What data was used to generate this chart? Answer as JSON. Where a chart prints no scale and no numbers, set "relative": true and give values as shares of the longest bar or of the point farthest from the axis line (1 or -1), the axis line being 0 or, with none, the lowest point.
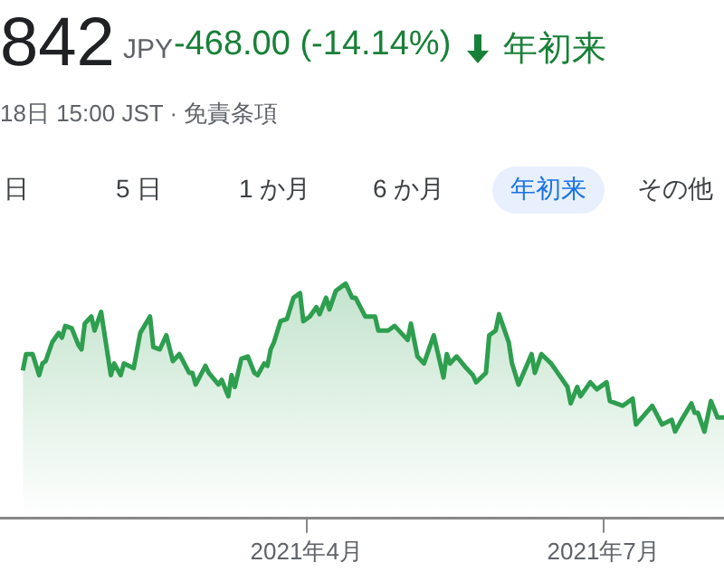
{
  "chart_data": {
    "type": "area",
    "title": "842",
    "subtitle": "18日 15:00 JST · 免責条項",
    "annotations": [
      "JPY",
      "-468.00 (-14.14%)",
      "年初来",
      "日",
      "5 日",
      "1 か月",
      "6 か月",
      "年初来",
      "その他"
    ],
    "relative": true,
    "legend": false,
    "marker": "none",
    "line_style": "solid",
    "xlim": [
      "2020-12-28",
      "2021-08-07"
    ],
    "xticks": [
      {
        "value": "2021-04-01",
        "label": "2021年4月"
      },
      {
        "value": "2021-07-01",
        "label": "2021年7月"
      }
    ],
    "x": [
      "2021-01-04",
      "2021-01-05",
      "2021-01-07",
      "2021-01-09",
      "2021-01-10",
      "2021-01-11",
      "2021-01-13",
      "2021-01-15",
      "2021-01-16",
      "2021-01-17",
      "2021-01-19",
      "2021-01-21",
      "2021-01-22",
      "2021-01-23",
      "2021-01-25",
      "2021-01-26",
      "2021-01-28",
      "2021-01-31",
      "2021-02-01",
      "2021-02-03",
      "2021-02-04",
      "2021-02-07",
      "2021-02-09",
      "2021-02-12",
      "2021-02-13",
      "2021-02-15",
      "2021-02-17",
      "2021-02-19",
      "2021-02-21",
      "2021-02-24",
      "2021-02-25",
      "2021-02-26",
      "2021-03-01",
      "2021-03-02",
      "2021-03-05",
      "2021-03-06",
      "2021-03-08",
      "2021-03-09",
      "2021-03-10",
      "2021-03-12",
      "2021-03-14",
      "2021-03-16",
      "2021-03-17",
      "2021-03-19",
      "2021-03-20",
      "2021-03-21",
      "2021-03-22",
      "2021-03-24",
      "2021-03-26",
      "2021-03-28",
      "2021-03-30",
      "2021-03-31",
      "2021-04-02",
      "2021-04-04",
      "2021-04-05",
      "2021-04-07",
      "2021-04-08",
      "2021-04-10",
      "2021-04-13",
      "2021-04-15",
      "2021-04-16",
      "2021-04-19",
      "2021-04-22",
      "2021-04-23",
      "2021-04-26",
      "2021-04-28",
      "2021-05-02",
      "2021-05-03",
      "2021-05-05",
      "2021-05-07",
      "2021-05-10",
      "2021-05-13",
      "2021-05-14",
      "2021-05-15",
      "2021-05-17",
      "2021-05-20",
      "2021-05-22",
      "2021-05-23",
      "2021-05-26",
      "2021-05-27",
      "2021-05-29",
      "2021-05-30",
      "2021-06-02",
      "2021-06-03",
      "2021-06-05",
      "2021-06-09",
      "2021-06-10",
      "2021-06-12",
      "2021-06-15",
      "2021-06-18",
      "2021-06-20",
      "2021-06-21",
      "2021-06-23",
      "2021-06-24",
      "2021-06-27",
      "2021-06-29",
      "2021-07-02",
      "2021-07-03",
      "2021-07-07",
      "2021-07-10",
      "2021-07-11",
      "2021-07-16",
      "2021-07-19",
      "2021-07-22",
      "2021-07-23",
      "2021-07-25",
      "2021-07-28",
      "2021-07-29",
      "2021-07-30",
      "2021-08-01",
      "2021-08-03",
      "2021-08-05",
      "2021-08-07"
    ],
    "series": [
      {
        "color": "#2e9e4f",
        "values": [
          0.63,
          0.7,
          0.7,
          0.61,
          0.66,
          0.67,
          0.75,
          0.79,
          0.77,
          0.82,
          0.81,
          0.74,
          0.72,
          0.83,
          0.86,
          0.8,
          0.88,
          0.61,
          0.66,
          0.61,
          0.66,
          0.64,
          0.79,
          0.86,
          0.73,
          0.72,
          0.78,
          0.67,
          0.7,
          0.62,
          0.62,
          0.57,
          0.65,
          0.62,
          0.57,
          0.59,
          0.52,
          0.61,
          0.56,
          0.68,
          0.69,
          0.62,
          0.61,
          0.66,
          0.65,
          0.72,
          0.75,
          0.84,
          0.85,
          0.94,
          0.96,
          0.84,
          0.86,
          0.9,
          0.87,
          0.94,
          0.89,
          0.97,
          1,
          0.94,
          0.94,
          0.86,
          0.86,
          0.8,
          0.8,
          0.82,
          0.76,
          0.83,
          0.69,
          0.66,
          0.78,
          0.6,
          0.7,
          0.66,
          0.69,
          0.64,
          0.61,
          0.58,
          0.62,
          0.78,
          0.8,
          0.87,
          0.75,
          0.66,
          0.57,
          0.7,
          0.62,
          0.7,
          0.66,
          0.6,
          0.56,
          0.49,
          0.56,
          0.52,
          0.58,
          0.55,
          0.58,
          0.5,
          0.48,
          0.51,
          0.4,
          0.48,
          0.4,
          0.42,
          0.37,
          0.42,
          0.49,
          0.45,
          0.45,
          0.37,
          0.5,
          0.43,
          0.43
        ]
      }
    ]
  }
}
